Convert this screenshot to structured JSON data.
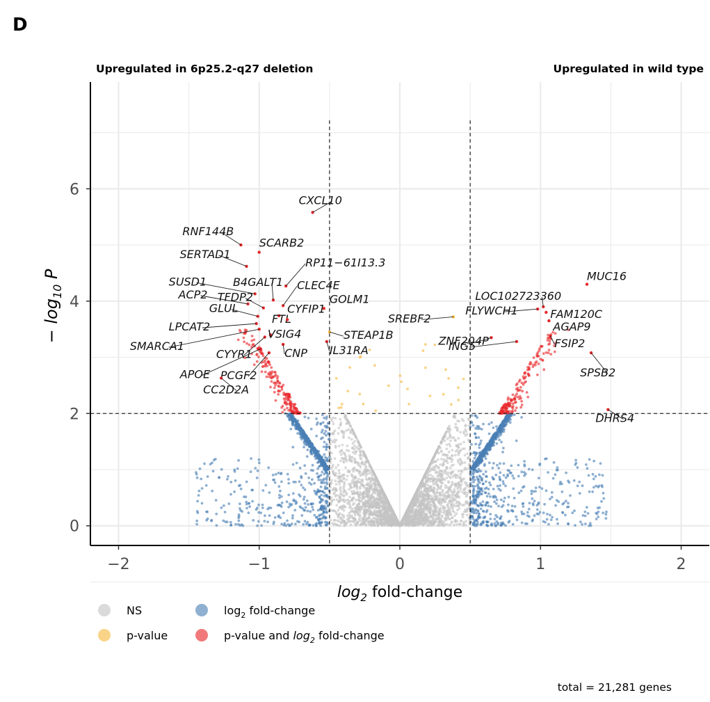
{
  "chart_data": {
    "type": "scatter",
    "panel_letter": "D",
    "left_header": "Upregulated in 6p25.2-q27 deletion",
    "right_header": "Upregulated in wild type",
    "xlabel": {
      "italic": "log",
      "sub": "2",
      "rest": " fold-change"
    },
    "ylabel": {
      "prefix": "− ",
      "italic": "log",
      "sub": "10",
      "after": " P"
    },
    "xlim": [
      -2.2,
      2.2
    ],
    "ylim": [
      -0.35,
      7.9
    ],
    "x_ticks": [
      -2,
      -1,
      0,
      1,
      2
    ],
    "x_tick_labels": [
      "−2",
      "−1",
      "0",
      "1",
      "2"
    ],
    "y_ticks": [
      0,
      2,
      4,
      6
    ],
    "y_tick_labels": [
      "0",
      "2",
      "4",
      "6"
    ],
    "grid": true,
    "fc_cutoff": 0.5,
    "p_cutoff": 2,
    "colors": {
      "NS": "#c4c4c4",
      "fc": "#4a7fb5",
      "p": "#f5b83d",
      "both": "#e8272a"
    },
    "legend": [
      {
        "key": "NS",
        "label": "NS"
      },
      {
        "key": "p",
        "label": "p-value"
      },
      {
        "key": "fc",
        "label": "log",
        "sub": "2",
        "rest": " fold-change"
      },
      {
        "key": "both",
        "label": "p-value and ",
        "italic": "log",
        "sub": "2",
        "rest": " fold-change"
      }
    ],
    "caption": "total = 21,281 genes",
    "labeled_genes": [
      {
        "gene": "CXCL10",
        "x": -0.62,
        "y": 5.58
      },
      {
        "gene": "RNF144B",
        "x": -1.13,
        "y": 5.0
      },
      {
        "gene": "SCARB2",
        "x": -1.0,
        "y": 4.87
      },
      {
        "gene": "SERTAD1",
        "x": -1.09,
        "y": 4.62
      },
      {
        "gene": "RP11−61I13.3",
        "x": -0.81,
        "y": 4.27
      },
      {
        "gene": "SUSD1",
        "x": -1.03,
        "y": 4.13
      },
      {
        "gene": "B4GALT1",
        "x": -0.9,
        "y": 4.02
      },
      {
        "gene": "CLEC4E",
        "x": -0.83,
        "y": 3.92
      },
      {
        "gene": "ACP2",
        "x": -1.08,
        "y": 3.95
      },
      {
        "gene": "TFDP2",
        "x": -0.97,
        "y": 3.88
      },
      {
        "gene": "FTL",
        "x": -0.86,
        "y": 3.74
      },
      {
        "gene": "GOLM1",
        "x": -0.54,
        "y": 3.87
      },
      {
        "gene": "CYFIP1",
        "x": -0.8,
        "y": 3.67
      },
      {
        "gene": "GLUL",
        "x": -1.01,
        "y": 3.73
      },
      {
        "gene": "LPCAT2",
        "x": -1.02,
        "y": 3.6
      },
      {
        "gene": "VSIG4",
        "x": -0.92,
        "y": 3.4
      },
      {
        "gene": "STEAP1B",
        "x": -0.5,
        "y": 3.45
      },
      {
        "gene": "SMARCA1",
        "x": -1.0,
        "y": 3.5
      },
      {
        "gene": "CYYR1",
        "x": -0.96,
        "y": 3.36
      },
      {
        "gene": "CNP",
        "x": -0.83,
        "y": 3.23
      },
      {
        "gene": "IL31RA",
        "x": -0.52,
        "y": 3.28
      },
      {
        "gene": "APOE",
        "x": -0.99,
        "y": 3.15
      },
      {
        "gene": "PCGF2",
        "x": -0.93,
        "y": 3.08
      },
      {
        "gene": "CC2D2A",
        "x": -1.27,
        "y": 2.63
      },
      {
        "gene": "SREBF2",
        "x": 0.38,
        "y": 3.72
      },
      {
        "gene": "LOC102723360",
        "x": 1.02,
        "y": 3.9
      },
      {
        "gene": "MUC16",
        "x": 1.33,
        "y": 4.3
      },
      {
        "gene": "FLYWCH1",
        "x": 0.98,
        "y": 3.86
      },
      {
        "gene": "FAM120C",
        "x": 1.04,
        "y": 3.8
      },
      {
        "gene": "AGAP9",
        "x": 1.06,
        "y": 3.65
      },
      {
        "gene": "ZNF204P",
        "x": 0.65,
        "y": 3.35
      },
      {
        "gene": "ING5",
        "x": 0.83,
        "y": 3.28
      },
      {
        "gene": "FSIP2",
        "x": 1.07,
        "y": 3.38
      },
      {
        "gene": "SPSB2",
        "x": 1.36,
        "y": 3.08
      },
      {
        "gene": "DHRS4",
        "x": 1.48,
        "y": 2.07
      }
    ]
  }
}
